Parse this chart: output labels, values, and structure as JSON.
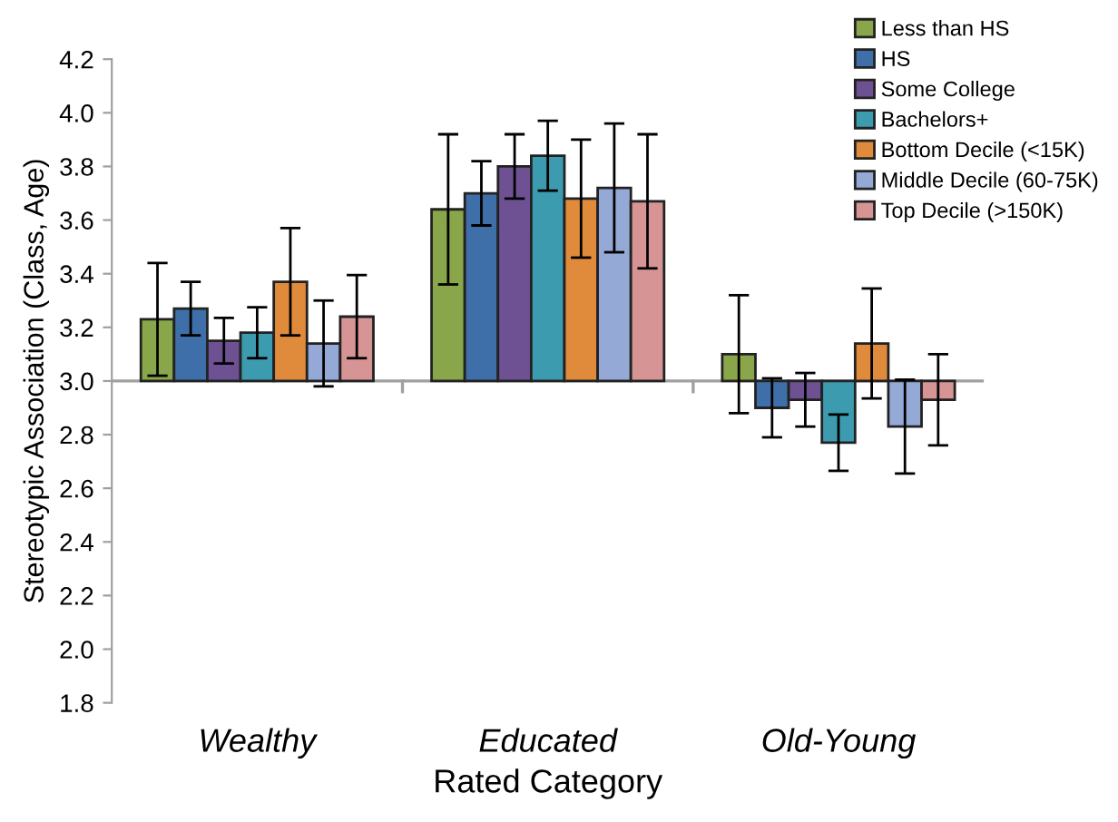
{
  "chart_data": {
    "type": "bar",
    "xlabel": "Rated Category",
    "ylabel": "Stereotypic Association (Class, Age)",
    "categories": [
      "Wealthy",
      "Educated",
      "Old-Young"
    ],
    "ylim": [
      1.8,
      4.2
    ],
    "yticks": [
      {
        "value": 1.8,
        "label": "1.8"
      },
      {
        "value": 2.0,
        "label": "2.0"
      },
      {
        "value": 2.2,
        "label": "2.2"
      },
      {
        "value": 2.4,
        "label": "2.4"
      },
      {
        "value": 2.6,
        "label": "2.6"
      },
      {
        "value": 2.8,
        "label": "2.8"
      },
      {
        "value": 3.0,
        "label": "3.0"
      },
      {
        "value": 3.2,
        "label": "3.2"
      },
      {
        "value": 3.4,
        "label": "3.4"
      },
      {
        "value": 3.6,
        "label": "3.6"
      },
      {
        "value": 3.8,
        "label": "3.8"
      },
      {
        "value": 4.0,
        "label": "4.0"
      },
      {
        "value": 4.2,
        "label": "4.2"
      }
    ],
    "legend": "top right",
    "ref_lines": [
      {
        "axis": "y",
        "value": 3.0,
        "color": "#a0a0a0"
      }
    ],
    "series": [
      {
        "name": "Less than HS",
        "color": "#8aa64a",
        "base": [
          3.0,
          3.0,
          3.0
        ],
        "values": [
          0.23,
          0.64,
          0.1
        ],
        "errors": [
          0.21,
          0.28,
          0.22
        ]
      },
      {
        "name": "HS",
        "color": "#3f6fa8",
        "base": [
          3.0,
          3.0,
          3.0
        ],
        "values": [
          0.27,
          0.7,
          -0.1
        ],
        "errors": [
          0.1,
          0.12,
          0.11
        ]
      },
      {
        "name": "Some College",
        "color": "#6e5193",
        "base": [
          3.0,
          3.0,
          3.0
        ],
        "values": [
          0.15,
          0.8,
          -0.07
        ],
        "errors": [
          0.085,
          0.12,
          0.1
        ]
      },
      {
        "name": "Bachelors+",
        "color": "#3d9bb0",
        "base": [
          3.0,
          3.0,
          3.0
        ],
        "values": [
          0.18,
          0.84,
          -0.23
        ],
        "errors": [
          0.095,
          0.13,
          0.105
        ]
      },
      {
        "name": "Bottom Decile (<15K)",
        "color": "#e08a3c",
        "base": [
          3.0,
          3.0,
          3.0
        ],
        "values": [
          0.37,
          0.68,
          0.14
        ],
        "errors": [
          0.2,
          0.22,
          0.205
        ]
      },
      {
        "name": "Middle Decile (60-75K)",
        "color": "#94a9d6",
        "base": [
          3.0,
          3.0,
          3.0
        ],
        "values": [
          0.14,
          0.72,
          -0.17
        ],
        "errors": [
          0.16,
          0.24,
          0.175
        ]
      },
      {
        "name": "Top Decile (>150K)",
        "color": "#d69594",
        "base": [
          3.0,
          3.0,
          3.0
        ],
        "values": [
          0.24,
          0.67,
          -0.07
        ],
        "errors": [
          0.155,
          0.25,
          0.17
        ]
      }
    ]
  }
}
